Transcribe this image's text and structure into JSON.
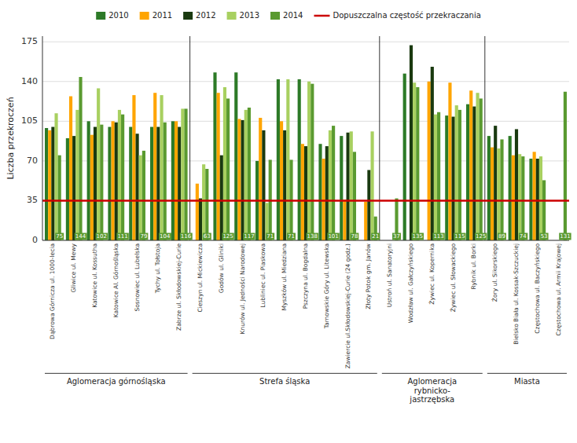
{
  "chart_data": {
    "type": "bar",
    "categories": [
      "Dąbrowa Górnicza ul. 1000-lecia",
      "Gliwice ul. Mewy",
      "Katowice ul. Kossutha",
      "Katowice Al. Górnośląska",
      "Sosnowiec ul. Lubelska",
      "Tychy ul. Tołstoja",
      "Zabrze ul. Skłodowskiej-Curie",
      "Cieszyn ul. Mickiewicza",
      "Godów ul. Gliniki",
      "Knurów ul. Jedności Narodowej",
      "Lubliniec ul. Piaskowa",
      "Myszków ul. Miedziana",
      "Pszczyna ul. Bogdalna",
      "Tarnowskie Góry ul. Litewska",
      "Zawiercie ul.Skłodowskiej-Curie (24 godz.)",
      "Złoty Potok gm. Janów",
      "Ustroń ul. Sanatoryjni",
      "Wodzław ul. Gałczyńskiego",
      "Żywiec ul. Kopernika",
      "Żywiec ul. Słowackiego",
      "Rybnik ul. Borki",
      "Żory ul. Sikorskiego",
      "Bielsko Biała ul. Kossak-Szczuckiej",
      "Częstochowa ul. Baczyńskiego",
      "Częstochowa ul. Armii Krajowej"
    ],
    "series": [
      {
        "name": "2010",
        "color": "#2d7a27",
        "values": [
          99,
          90,
          105,
          100,
          100,
          100,
          105,
          0,
          148,
          148,
          70,
          142,
          142,
          85,
          92,
          0,
          0,
          147,
          0,
          110,
          120,
          92,
          92,
          72,
          0
        ]
      },
      {
        "name": "2011",
        "color": "#ffa500",
        "values": [
          97,
          127,
          93,
          105,
          128,
          130,
          105,
          50,
          130,
          107,
          108,
          105,
          85,
          72,
          36,
          34,
          0,
          0,
          140,
          139,
          132,
          82,
          75,
          78,
          0
        ]
      },
      {
        "name": "2012",
        "color": "#1a3a10",
        "values": [
          100,
          92,
          100,
          104,
          94,
          100,
          100,
          37,
          75,
          106,
          97,
          97,
          83,
          83,
          95,
          62,
          0,
          172,
          153,
          109,
          118,
          101,
          98,
          72,
          0
        ]
      },
      {
        "name": "2013",
        "color": "#a8d060",
        "values": [
          112,
          115,
          134,
          115,
          75,
          128,
          116,
          67,
          135,
          115,
          33,
          142,
          140,
          97,
          96,
          96,
          0,
          139,
          111,
          119,
          130,
          81,
          76,
          74,
          0
        ]
      },
      {
        "name": "2014",
        "color": "#5a9a30",
        "data_labels": true,
        "values": [
          75,
          144,
          102,
          111,
          79,
          104,
          116,
          63,
          125,
          117,
          71,
          71,
          138,
          101,
          78,
          21,
          37,
          135,
          113,
          115,
          125,
          89,
          74,
          53,
          131
        ]
      }
    ],
    "hlines": [
      {
        "value": 35,
        "name": "Dopuszczalna częstość przekraczania",
        "color": "#cc0000"
      }
    ],
    "groups": [
      {
        "label": "Aglomeracja górnośląska",
        "start": 0,
        "end": 6
      },
      {
        "label": "Strefa śląska",
        "start": 7,
        "end": 15
      },
      {
        "label": "Aglomeracja\nrybnicko-\njastrzębska",
        "start": 16,
        "end": 20
      },
      {
        "label": "Miasta",
        "start": 21,
        "end": 24
      }
    ],
    "ylabel": "Liczba przekroczeń",
    "ylim": [
      0,
      180
    ],
    "yticks": [
      0,
      35,
      70,
      105,
      140,
      175
    ],
    "grid": true,
    "legend": "top"
  }
}
